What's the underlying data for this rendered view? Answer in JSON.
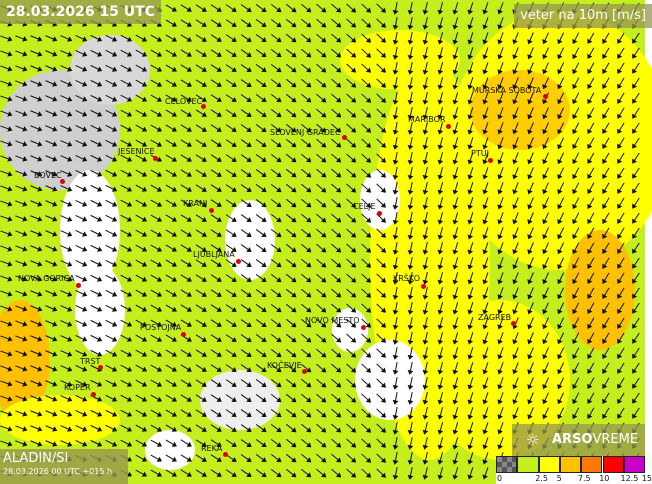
{
  "header": {
    "valid_time": "28.03.2026 15 UTC",
    "variable": "veter na 10m [m/s]"
  },
  "model": {
    "name": "ALADIN/SI",
    "run": "28.03.2026 00 UTC +015 h"
  },
  "brand": {
    "icon": "sun-icon",
    "name_bold": "ARSO",
    "name_light": "VREME"
  },
  "legend": {
    "ticks": [
      "0",
      "2.5",
      "5",
      "7.5",
      "10",
      "12.5",
      "15"
    ],
    "colors": [
      "#666666",
      "#c4ef1c",
      "#ffff00",
      "#ffc000",
      "#ff7800",
      "#ff0000",
      "#c800c8"
    ]
  },
  "cities": [
    {
      "name": "CELOVEC"
    },
    {
      "name": "SLOVENJ GRADEC"
    },
    {
      "name": "MARIBOR"
    },
    {
      "name": "MURSKA SOBOTA"
    },
    {
      "name": "JESENICE"
    },
    {
      "name": "PTUJ"
    },
    {
      "name": "BOVEC"
    },
    {
      "name": "KRANJ"
    },
    {
      "name": "CELJE"
    },
    {
      "name": "LJUBLJANA"
    },
    {
      "name": "NOVA GORICA"
    },
    {
      "name": "KRŠKO"
    },
    {
      "name": "POSTOJNA"
    },
    {
      "name": "NOVO MESTO"
    },
    {
      "name": "ZAGREB"
    },
    {
      "name": "TRST"
    },
    {
      "name": "KOČEVJE"
    },
    {
      "name": "KOPER"
    },
    {
      "name": "REKA"
    }
  ]
}
